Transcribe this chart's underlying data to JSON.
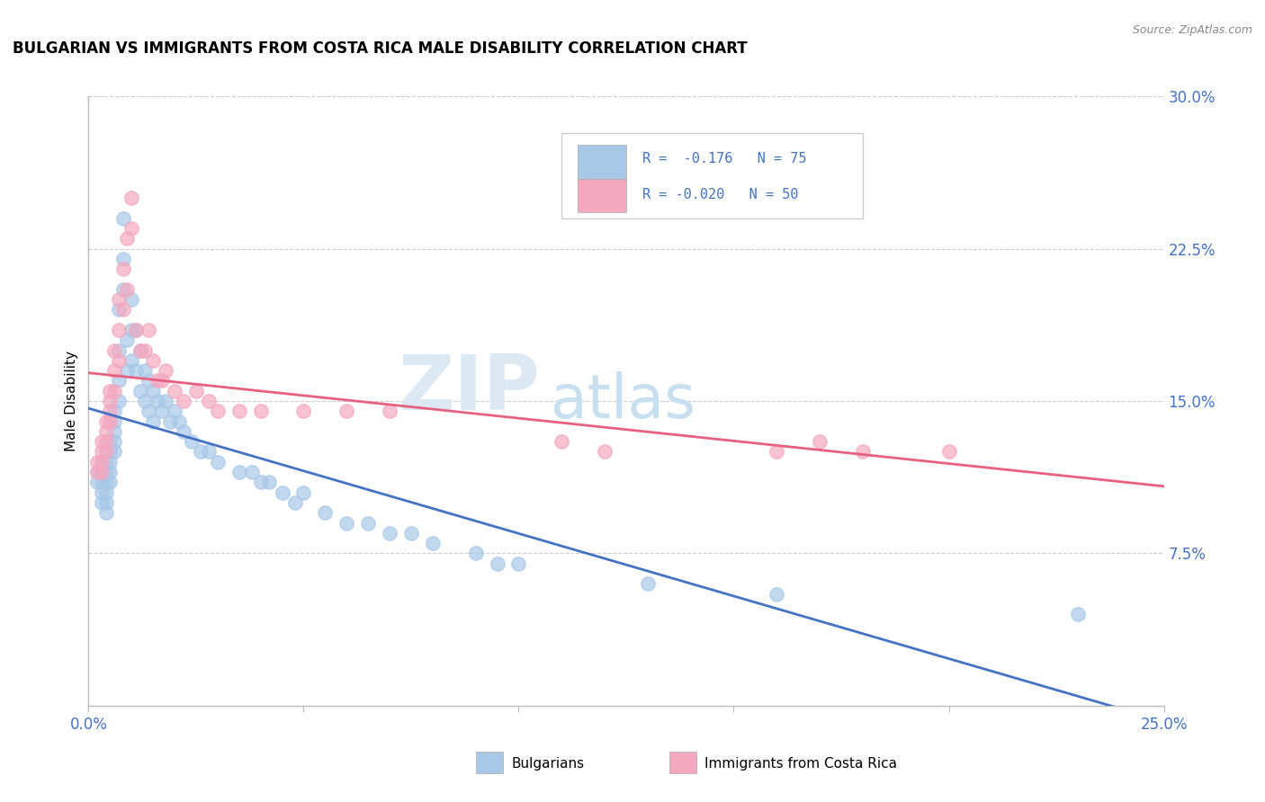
{
  "title": "BULGARIAN VS IMMIGRANTS FROM COSTA RICA MALE DISABILITY CORRELATION CHART",
  "source": "Source: ZipAtlas.com",
  "ylabel": "Male Disability",
  "xlim": [
    0.0,
    0.25
  ],
  "ylim": [
    0.0,
    0.3
  ],
  "xticks": [
    0.0,
    0.05,
    0.1,
    0.15,
    0.2,
    0.25
  ],
  "yticks_right": [
    0.075,
    0.15,
    0.225,
    0.3
  ],
  "ytick_labels_right": [
    "7.5%",
    "15.0%",
    "22.5%",
    "30.0%"
  ],
  "xtick_labels": [
    "0.0%",
    "",
    "",
    "",
    "",
    "25.0%"
  ],
  "blue_R": -0.176,
  "blue_N": 75,
  "pink_R": -0.02,
  "pink_N": 50,
  "blue_color": "#a8c8e8",
  "pink_color": "#f4a8c0",
  "blue_line_color": "#4472c4",
  "pink_line_color": "#e86080",
  "watermark_zip": "ZIP",
  "watermark_atlas": "atlas",
  "blue_scatter_x": [
    0.002,
    0.002,
    0.003,
    0.003,
    0.003,
    0.003,
    0.003,
    0.004,
    0.004,
    0.004,
    0.004,
    0.004,
    0.004,
    0.005,
    0.005,
    0.005,
    0.005,
    0.005,
    0.006,
    0.006,
    0.006,
    0.006,
    0.006,
    0.007,
    0.007,
    0.007,
    0.007,
    0.008,
    0.008,
    0.008,
    0.009,
    0.009,
    0.01,
    0.01,
    0.01,
    0.011,
    0.011,
    0.012,
    0.012,
    0.013,
    0.013,
    0.014,
    0.014,
    0.015,
    0.015,
    0.016,
    0.017,
    0.018,
    0.019,
    0.02,
    0.021,
    0.022,
    0.024,
    0.026,
    0.028,
    0.03,
    0.035,
    0.038,
    0.04,
    0.042,
    0.045,
    0.048,
    0.05,
    0.055,
    0.06,
    0.065,
    0.07,
    0.075,
    0.08,
    0.09,
    0.095,
    0.1,
    0.13,
    0.16,
    0.23
  ],
  "blue_scatter_y": [
    0.115,
    0.11,
    0.12,
    0.115,
    0.11,
    0.105,
    0.1,
    0.12,
    0.115,
    0.11,
    0.105,
    0.1,
    0.095,
    0.13,
    0.125,
    0.12,
    0.115,
    0.11,
    0.145,
    0.14,
    0.135,
    0.13,
    0.125,
    0.195,
    0.175,
    0.16,
    0.15,
    0.24,
    0.22,
    0.205,
    0.18,
    0.165,
    0.2,
    0.185,
    0.17,
    0.185,
    0.165,
    0.175,
    0.155,
    0.165,
    0.15,
    0.16,
    0.145,
    0.155,
    0.14,
    0.15,
    0.145,
    0.15,
    0.14,
    0.145,
    0.14,
    0.135,
    0.13,
    0.125,
    0.125,
    0.12,
    0.115,
    0.115,
    0.11,
    0.11,
    0.105,
    0.1,
    0.105,
    0.095,
    0.09,
    0.09,
    0.085,
    0.085,
    0.08,
    0.075,
    0.07,
    0.07,
    0.06,
    0.055,
    0.045
  ],
  "pink_scatter_x": [
    0.002,
    0.002,
    0.003,
    0.003,
    0.003,
    0.003,
    0.004,
    0.004,
    0.004,
    0.004,
    0.005,
    0.005,
    0.005,
    0.005,
    0.006,
    0.006,
    0.006,
    0.007,
    0.007,
    0.007,
    0.008,
    0.008,
    0.009,
    0.009,
    0.01,
    0.01,
    0.011,
    0.012,
    0.013,
    0.014,
    0.015,
    0.016,
    0.017,
    0.018,
    0.02,
    0.022,
    0.025,
    0.028,
    0.03,
    0.035,
    0.04,
    0.05,
    0.06,
    0.07,
    0.11,
    0.12,
    0.16,
    0.17,
    0.18,
    0.2
  ],
  "pink_scatter_y": [
    0.12,
    0.115,
    0.13,
    0.125,
    0.12,
    0.115,
    0.14,
    0.135,
    0.13,
    0.125,
    0.155,
    0.15,
    0.145,
    0.14,
    0.175,
    0.165,
    0.155,
    0.2,
    0.185,
    0.17,
    0.215,
    0.195,
    0.23,
    0.205,
    0.25,
    0.235,
    0.185,
    0.175,
    0.175,
    0.185,
    0.17,
    0.16,
    0.16,
    0.165,
    0.155,
    0.15,
    0.155,
    0.15,
    0.145,
    0.145,
    0.145,
    0.145,
    0.145,
    0.145,
    0.13,
    0.125,
    0.125,
    0.13,
    0.125,
    0.125
  ]
}
